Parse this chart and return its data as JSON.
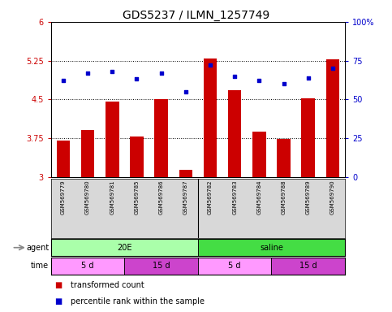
{
  "title": "GDS5237 / ILMN_1257749",
  "samples": [
    "GSM569779",
    "GSM569780",
    "GSM569781",
    "GSM569785",
    "GSM569786",
    "GSM569787",
    "GSM569782",
    "GSM569783",
    "GSM569784",
    "GSM569788",
    "GSM569789",
    "GSM569790"
  ],
  "bar_values": [
    3.7,
    3.9,
    4.45,
    3.78,
    4.5,
    3.14,
    5.29,
    4.68,
    3.87,
    3.74,
    4.52,
    5.27
  ],
  "dot_percentiles": [
    62,
    67,
    68,
    63,
    67,
    55,
    72,
    65,
    62,
    60,
    64,
    70
  ],
  "ylim_left": [
    3,
    6
  ],
  "ylim_right": [
    0,
    100
  ],
  "yticks_left": [
    3,
    3.75,
    4.5,
    5.25,
    6
  ],
  "yticks_right": [
    0,
    25,
    50,
    75,
    100
  ],
  "ytick_labels_left": [
    "3",
    "3.75",
    "4.5",
    "5.25",
    "6"
  ],
  "ytick_labels_right": [
    "0",
    "25",
    "50",
    "75",
    "100%"
  ],
  "hlines": [
    3.75,
    4.5,
    5.25
  ],
  "bar_color": "#CC0000",
  "dot_color": "#0000CC",
  "bar_bottom": 3,
  "agent_groups": [
    {
      "label": "20E",
      "start": 0,
      "end": 6,
      "color": "#AAFFAA"
    },
    {
      "label": "saline",
      "start": 6,
      "end": 12,
      "color": "#44DD44"
    }
  ],
  "time_groups": [
    {
      "label": "5 d",
      "start": 0,
      "end": 3,
      "color": "#FF99FF"
    },
    {
      "label": "15 d",
      "start": 3,
      "end": 6,
      "color": "#CC44CC"
    },
    {
      "label": "5 d",
      "start": 6,
      "end": 9,
      "color": "#FF99FF"
    },
    {
      "label": "15 d",
      "start": 9,
      "end": 12,
      "color": "#CC44CC"
    }
  ],
  "legend_items": [
    {
      "label": "transformed count",
      "color": "#CC0000",
      "marker": "s"
    },
    {
      "label": "percentile rank within the sample",
      "color": "#0000CC",
      "marker": "s"
    }
  ],
  "title_fontsize": 10,
  "tick_fontsize": 7,
  "sample_fontsize": 5,
  "label_fontsize": 7,
  "row_label_fontsize": 7,
  "legend_fontsize": 7,
  "axis_color_left": "#CC0000",
  "axis_color_right": "#0000CC",
  "bg_color": "#ffffff",
  "sample_bg": "#D8D8D8",
  "arrow_color": "#888888"
}
